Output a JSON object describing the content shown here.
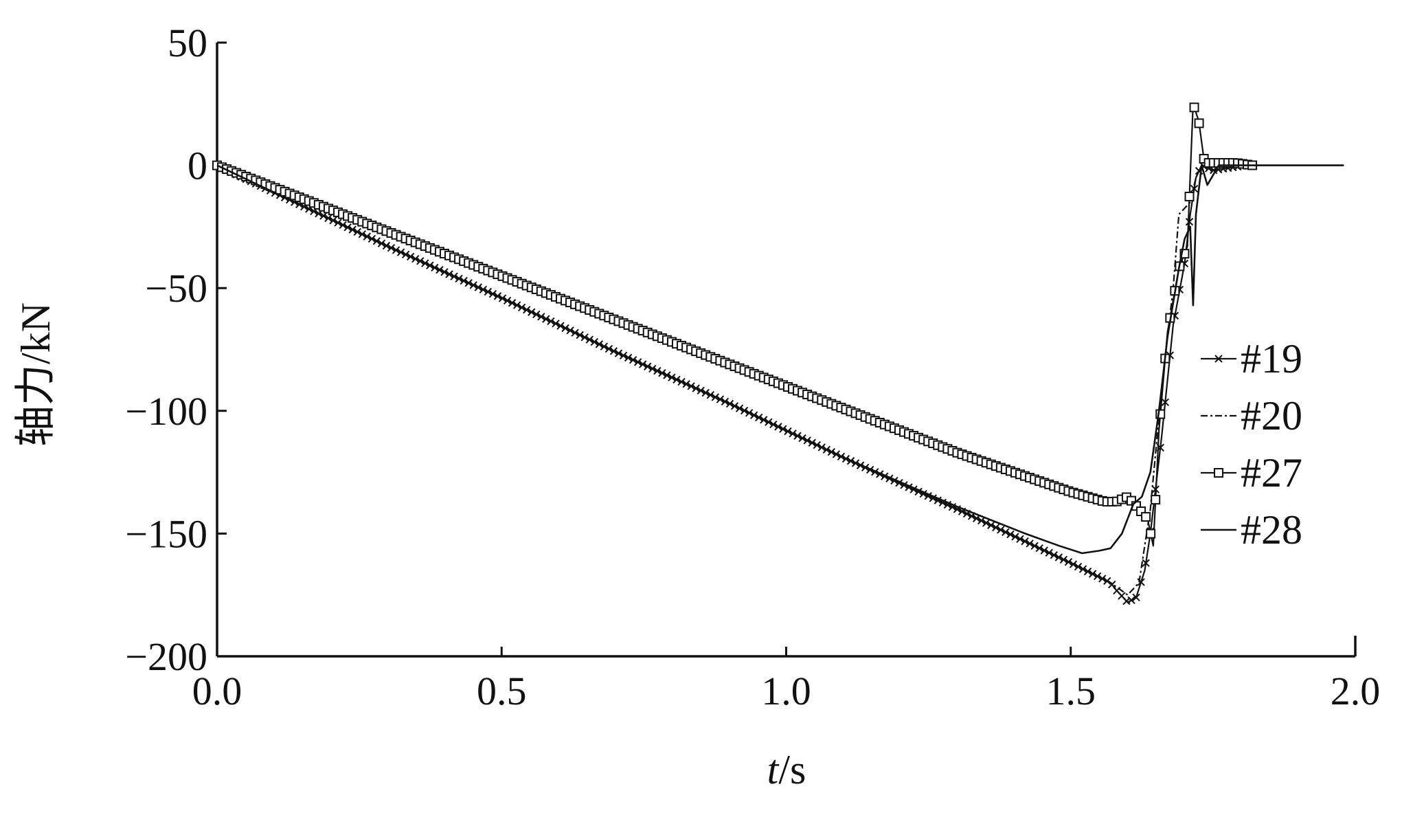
{
  "chart_data": {
    "type": "line",
    "title": "",
    "xlabel_italic": "t",
    "xlabel_unit": "/s",
    "ylabel": "轴力/kN",
    "xlim": [
      0.0,
      2.0
    ],
    "ylim": [
      -200,
      50
    ],
    "xticks": [
      0.0,
      0.5,
      1.0,
      1.5,
      2.0
    ],
    "xtick_labels": [
      "0.0",
      "0.5",
      "1.0",
      "1.5",
      "2.0"
    ],
    "yticks": [
      50,
      0,
      -50,
      -100,
      -150,
      -200
    ],
    "ytick_labels": [
      "50",
      "0",
      "−50",
      "−100",
      "−150",
      "−200"
    ],
    "grid": false,
    "legend_position": "right",
    "series": [
      {
        "name": "#19",
        "style": "x-marker",
        "points": [
          [
            0.0,
            0.0
          ],
          [
            0.1,
            -11
          ],
          [
            0.3,
            -33
          ],
          [
            0.5,
            -54
          ],
          [
            0.7,
            -76
          ],
          [
            0.9,
            -97
          ],
          [
            1.1,
            -119
          ],
          [
            1.3,
            -140
          ],
          [
            1.5,
            -162
          ],
          [
            1.57,
            -170
          ],
          [
            1.58,
            -173
          ],
          [
            1.6,
            -178
          ],
          [
            1.615,
            -176
          ],
          [
            1.63,
            -165
          ],
          [
            1.64,
            -150
          ],
          [
            1.66,
            -110
          ],
          [
            1.68,
            -65
          ],
          [
            1.7,
            -40
          ],
          [
            1.71,
            -20
          ],
          [
            1.72,
            -5
          ],
          [
            1.73,
            0
          ],
          [
            1.75,
            -2
          ],
          [
            1.78,
            -1
          ],
          [
            1.81,
            0
          ]
        ]
      },
      {
        "name": "#20",
        "style": "dash-dot",
        "points": [
          [
            0.0,
            0.0
          ],
          [
            0.1,
            -11
          ],
          [
            0.3,
            -33
          ],
          [
            0.5,
            -54
          ],
          [
            0.7,
            -76
          ],
          [
            0.9,
            -97
          ],
          [
            1.1,
            -119
          ],
          [
            1.3,
            -140
          ],
          [
            1.5,
            -162
          ],
          [
            1.57,
            -170
          ],
          [
            1.6,
            -175
          ],
          [
            1.62,
            -170
          ],
          [
            1.64,
            -140
          ],
          [
            1.66,
            -90
          ],
          [
            1.68,
            -50
          ],
          [
            1.69,
            -20
          ],
          [
            1.71,
            -15
          ],
          [
            1.72,
            -5
          ],
          [
            1.73,
            0
          ],
          [
            1.8,
            0
          ]
        ]
      },
      {
        "name": "#27",
        "style": "square-marker",
        "points": [
          [
            0.0,
            0.0
          ],
          [
            0.1,
            -9
          ],
          [
            0.3,
            -27
          ],
          [
            0.5,
            -45
          ],
          [
            0.7,
            -63
          ],
          [
            0.9,
            -81
          ],
          [
            1.1,
            -99
          ],
          [
            1.3,
            -117
          ],
          [
            1.5,
            -133
          ],
          [
            1.56,
            -137
          ],
          [
            1.58,
            -137
          ],
          [
            1.6,
            -135
          ],
          [
            1.62,
            -140
          ],
          [
            1.635,
            -144
          ],
          [
            1.645,
            -155
          ],
          [
            1.655,
            -108
          ],
          [
            1.67,
            -68
          ],
          [
            1.69,
            -42
          ],
          [
            1.705,
            -33
          ],
          [
            1.715,
            25
          ],
          [
            1.725,
            18
          ],
          [
            1.735,
            1
          ],
          [
            1.76,
            1
          ],
          [
            1.79,
            1
          ],
          [
            1.82,
            0
          ]
        ]
      },
      {
        "name": "#28",
        "style": "solid",
        "points": [
          [
            0.0,
            0.0
          ],
          [
            0.1,
            -11
          ],
          [
            0.3,
            -33
          ],
          [
            0.5,
            -54
          ],
          [
            0.7,
            -76
          ],
          [
            0.9,
            -97
          ],
          [
            1.1,
            -119
          ],
          [
            1.3,
            -139
          ],
          [
            1.42,
            -150
          ],
          [
            1.48,
            -155
          ],
          [
            1.52,
            -158
          ],
          [
            1.55,
            -157
          ],
          [
            1.57,
            -156
          ],
          [
            1.59,
            -150
          ],
          [
            1.61,
            -138
          ],
          [
            1.625,
            -135
          ],
          [
            1.64,
            -125
          ],
          [
            1.655,
            -100
          ],
          [
            1.67,
            -70
          ],
          [
            1.69,
            -42
          ],
          [
            1.7,
            -30
          ],
          [
            1.71,
            -25
          ],
          [
            1.715,
            -57
          ],
          [
            1.72,
            -20
          ],
          [
            1.73,
            0
          ],
          [
            1.74,
            -8
          ],
          [
            1.76,
            0
          ],
          [
            1.8,
            0
          ],
          [
            1.98,
            0
          ]
        ]
      }
    ]
  }
}
